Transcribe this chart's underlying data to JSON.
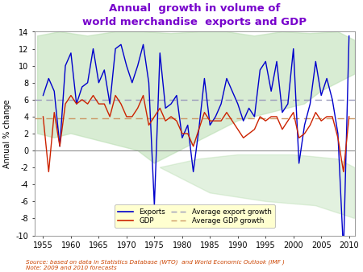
{
  "title": "Annual  growth in volume of\nworld merchandise  exports and GDP",
  "ylabel": "Annual % change",
  "title_color": "#7700cc",
  "years": [
    1955,
    1956,
    1957,
    1958,
    1959,
    1960,
    1961,
    1962,
    1963,
    1964,
    1965,
    1966,
    1967,
    1968,
    1969,
    1970,
    1971,
    1972,
    1973,
    1974,
    1975,
    1976,
    1977,
    1978,
    1979,
    1980,
    1981,
    1982,
    1983,
    1984,
    1985,
    1986,
    1987,
    1988,
    1989,
    1990,
    1991,
    1992,
    1993,
    1994,
    1995,
    1996,
    1997,
    1998,
    1999,
    2000,
    2001,
    2002,
    2003,
    2004,
    2005,
    2006,
    2007,
    2008,
    2009,
    2010
  ],
  "exports": [
    6.5,
    8.5,
    7.0,
    0.5,
    10.0,
    11.5,
    5.5,
    7.5,
    8.0,
    12.0,
    8.0,
    9.5,
    5.5,
    12.0,
    12.5,
    10.0,
    8.0,
    10.0,
    12.5,
    8.0,
    -6.5,
    11.5,
    5.0,
    5.5,
    6.5,
    1.5,
    3.0,
    -2.5,
    2.5,
    8.5,
    3.0,
    4.0,
    5.5,
    8.5,
    7.0,
    5.5,
    3.5,
    5.0,
    4.0,
    9.5,
    10.5,
    7.0,
    10.5,
    4.5,
    5.5,
    12.0,
    -1.5,
    3.0,
    5.5,
    10.5,
    6.5,
    8.5,
    6.0,
    2.0,
    -12.0,
    13.5
  ],
  "gdp": [
    4.0,
    -2.5,
    4.5,
    0.5,
    5.5,
    6.5,
    5.5,
    6.0,
    5.5,
    6.5,
    5.5,
    5.5,
    4.0,
    6.5,
    5.5,
    4.0,
    4.0,
    5.0,
    6.5,
    3.0,
    4.0,
    5.0,
    3.5,
    4.0,
    3.5,
    2.0,
    2.0,
    0.5,
    2.5,
    4.5,
    3.5,
    3.5,
    3.5,
    4.5,
    3.5,
    2.5,
    1.5,
    2.0,
    2.5,
    4.0,
    3.5,
    4.0,
    4.0,
    2.5,
    3.5,
    4.5,
    1.5,
    2.0,
    3.0,
    4.5,
    3.5,
    4.0,
    4.0,
    1.5,
    -2.5,
    4.0
  ],
  "avg_export_growth": 6.0,
  "avg_gdp_growth": 3.8,
  "ylim": [
    -10,
    14
  ],
  "yticks": [
    -10,
    -8,
    -6,
    -4,
    -2,
    0,
    2,
    4,
    6,
    8,
    10,
    12,
    14
  ],
  "xticks": [
    1955,
    1960,
    1965,
    1970,
    1975,
    1980,
    1985,
    1990,
    1995,
    2000,
    2005,
    2010
  ],
  "exports_color": "#0000cc",
  "gdp_color": "#cc2200",
  "avg_export_color": "#9999bb",
  "avg_gdp_color": "#cc9966",
  "bg_map_color": "#b8ddb0",
  "legend_bg": "#ffffd0",
  "source_text": "Source: based on data in Statistics Database (WTO)  and World Economic Outlook (IMF )\nNote: 2009 and 2010 forecasts",
  "source_color": "#cc4400",
  "fig_bg": "#ffffff",
  "plot_bg": "#ffffff"
}
